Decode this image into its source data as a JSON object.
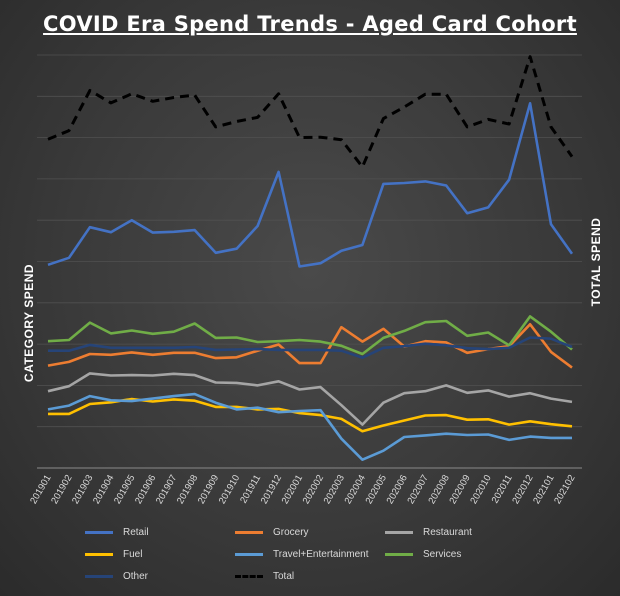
{
  "chart_data": {
    "type": "line",
    "title": "COVID Era Spend Trends - Aged Card Cohort",
    "ylabel_left": "CATEGORY SPEND",
    "ylabel_right": "TOTAL SPEND",
    "categories": [
      "201901",
      "201902",
      "201903",
      "201904",
      "201905",
      "201906",
      "201907",
      "201908",
      "201909",
      "201910",
      "201911",
      "201912",
      "202001",
      "202002",
      "202003",
      "202004",
      "202005",
      "202006",
      "202007",
      "202008",
      "202009",
      "202010",
      "202011",
      "202012",
      "202101",
      "202102"
    ],
    "ylim_left": [
      0,
      100
    ],
    "ylim_right": [
      0,
      100
    ],
    "grid": true,
    "legend_position": "bottom",
    "series": [
      {
        "name": "Retail",
        "color": "#4472C4",
        "dash": false,
        "axis": "left",
        "values": [
          49.2,
          50.9,
          58.3,
          57.1,
          60.0,
          57.0,
          57.2,
          57.6,
          52.1,
          53.1,
          58.6,
          71.7,
          48.8,
          49.6,
          52.6,
          54.0,
          68.8,
          69.0,
          69.4,
          68.4,
          61.7,
          63.1,
          69.8,
          88.3,
          59.0,
          51.9
        ]
      },
      {
        "name": "Grocery",
        "color": "#ED7D31",
        "dash": false,
        "axis": "left",
        "values": [
          24.8,
          25.7,
          27.6,
          27.4,
          28.0,
          27.4,
          27.9,
          27.9,
          26.6,
          26.8,
          28.4,
          29.9,
          25.4,
          25.4,
          34.1,
          30.6,
          33.7,
          29.4,
          30.7,
          30.4,
          27.9,
          28.8,
          29.5,
          34.8,
          28.1,
          24.3
        ]
      },
      {
        "name": "Restaurant",
        "color": "#A5A5A5",
        "dash": false,
        "axis": "left",
        "values": [
          18.6,
          19.8,
          22.9,
          22.4,
          22.5,
          22.4,
          22.8,
          22.5,
          20.7,
          20.6,
          20.0,
          21.0,
          19.0,
          19.6,
          15.2,
          10.5,
          15.8,
          18.1,
          18.6,
          20.0,
          18.2,
          18.8,
          17.3,
          18.1,
          16.8,
          16.0
        ]
      },
      {
        "name": "Fuel",
        "color": "#FFC000",
        "dash": false,
        "axis": "left",
        "values": [
          13.1,
          13.1,
          15.5,
          15.9,
          16.7,
          16.1,
          16.6,
          16.3,
          14.8,
          14.8,
          14.2,
          14.3,
          13.3,
          12.8,
          11.9,
          8.9,
          10.3,
          11.5,
          12.7,
          12.8,
          11.7,
          11.8,
          10.5,
          11.3,
          10.6,
          10.1
        ]
      },
      {
        "name": "Travel+Entertainment",
        "color": "#5B9BD5",
        "dash": false,
        "axis": "left",
        "values": [
          14.2,
          15.1,
          17.4,
          16.4,
          16.2,
          16.8,
          17.4,
          17.9,
          15.8,
          14.2,
          14.6,
          13.5,
          13.8,
          14.0,
          7.1,
          2.0,
          4.2,
          7.5,
          7.9,
          8.3,
          8.0,
          8.1,
          6.8,
          7.6,
          7.3,
          7.3
        ]
      },
      {
        "name": "Services",
        "color": "#70AD47",
        "dash": false,
        "axis": "left",
        "values": [
          30.7,
          31.0,
          35.2,
          32.6,
          33.3,
          32.5,
          33.0,
          35.0,
          31.5,
          31.6,
          30.5,
          30.7,
          31.0,
          30.6,
          29.6,
          27.6,
          31.5,
          33.2,
          35.3,
          35.6,
          32.0,
          32.8,
          29.7,
          36.7,
          33.0,
          28.7
        ]
      },
      {
        "name": "Other",
        "color": "#264478",
        "dash": false,
        "axis": "left",
        "values": [
          28.4,
          28.4,
          29.8,
          29.1,
          29.1,
          29.1,
          29.1,
          29.3,
          28.6,
          28.7,
          28.8,
          28.6,
          28.6,
          28.6,
          28.4,
          26.7,
          29.1,
          29.5,
          30.1,
          29.7,
          29.0,
          28.8,
          29.1,
          31.6,
          31.3,
          29.3
        ]
      },
      {
        "name": "Total",
        "color": "#000000",
        "dash": true,
        "axis": "right",
        "values": [
          79.6,
          81.7,
          91.4,
          88.4,
          90.6,
          88.8,
          89.7,
          90.3,
          82.6,
          83.9,
          84.9,
          90.6,
          80.0,
          80.1,
          79.5,
          72.9,
          84.6,
          87.4,
          90.5,
          90.5,
          82.6,
          84.4,
          83.3,
          99.6,
          82.6,
          75.4
        ]
      }
    ]
  }
}
